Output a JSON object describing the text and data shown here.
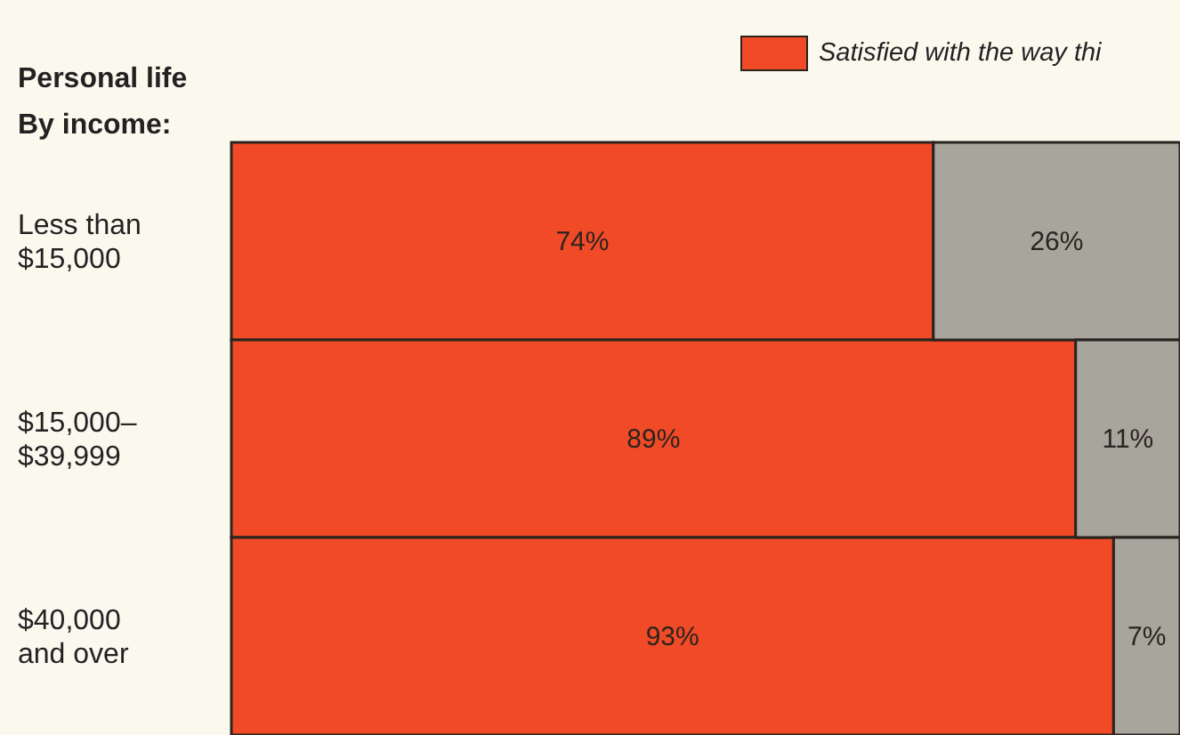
{
  "chart_data": {
    "type": "bar",
    "orientation": "horizontal",
    "stacked": true,
    "title": "Personal life",
    "subtitle": "By income:",
    "categories": [
      "Less than\n$15,000",
      "$15,000–\n$39,999",
      "$40,000\nand over"
    ],
    "legend": "top right",
    "series": [
      {
        "name": "Satisfied with the way thi",
        "color": "#f04a26",
        "values": [
          74,
          89,
          93
        ],
        "value_labels": [
          "74%",
          "89%",
          "93%"
        ]
      },
      {
        "color": "#a8a59c",
        "values": [
          26,
          11,
          7
        ],
        "value_labels": [
          "26%",
          "11%",
          "7%"
        ]
      }
    ]
  }
}
